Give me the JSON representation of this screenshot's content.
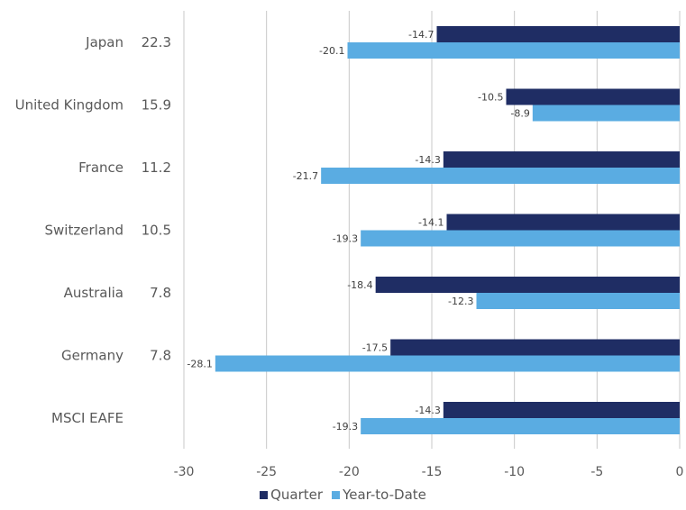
{
  "chart_data": {
    "type": "bar",
    "orientation": "horizontal",
    "categories": [
      "Japan",
      "United Kingdom",
      "France",
      "Switzerland",
      "Australia",
      "Germany",
      "MSCI EAFE"
    ],
    "weights": [
      "22.3",
      "15.9",
      "11.2",
      "10.5",
      "7.8",
      "7.8",
      ""
    ],
    "series": [
      {
        "name": "Quarter",
        "color": "#1f2d64",
        "values": [
          -14.7,
          -10.5,
          -14.3,
          -14.1,
          -18.4,
          -17.5,
          -14.3
        ],
        "labels": [
          "-14.7",
          "-10.5",
          "-14.3",
          "-14.1",
          "-18.4",
          "-17.5",
          "-14.3"
        ]
      },
      {
        "name": "Year-to-Date",
        "color": "#5aace2",
        "values": [
          -20.1,
          -8.9,
          -21.7,
          -19.3,
          -12.3,
          -28.1,
          -19.3
        ],
        "labels": [
          "-20.1",
          "-8.9",
          "-21.7",
          "-19.3",
          "-12.3",
          "-28.1",
          "-19.3"
        ]
      }
    ],
    "xlim": [
      -30,
      0
    ],
    "xticks": [
      -30,
      -25,
      -20,
      -15,
      -10,
      -5,
      0
    ],
    "xtick_labels": [
      "-30",
      "-25",
      "-20",
      "-15",
      "-10",
      "-5",
      "0"
    ],
    "grid": "vertical",
    "legend_position": "bottom-center",
    "title": "",
    "xlabel": "",
    "ylabel": ""
  }
}
